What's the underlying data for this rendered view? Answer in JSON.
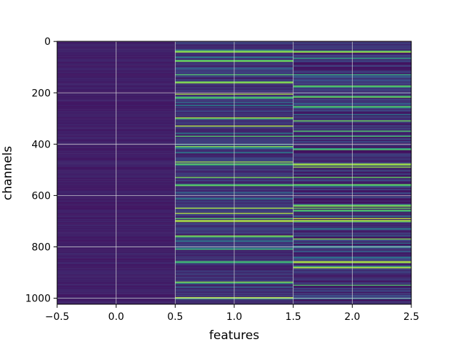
{
  "chart_data": {
    "type": "heatmap",
    "title": "",
    "xlabel": "features",
    "ylabel": "channels",
    "columns": 3,
    "rows": 1024,
    "xlim": [
      -0.5,
      2.5
    ],
    "ylim": [
      1023.5,
      -0.5
    ],
    "xticks": [
      -0.5,
      0.0,
      0.5,
      1.0,
      1.5,
      2.0,
      2.5
    ],
    "xtick_labels": [
      "−0.5",
      "0.0",
      "0.5",
      "1.0",
      "1.5",
      "2.0",
      "2.5"
    ],
    "yticks": [
      0,
      200,
      400,
      600,
      800,
      1000
    ],
    "ytick_labels": [
      "0",
      "200",
      "400",
      "600",
      "800",
      "1000"
    ],
    "grid": true,
    "colormap": "viridis",
    "column_bright_rows": [
      [],
      [
        40,
        75,
        130,
        160,
        205,
        220,
        300,
        330,
        370,
        410,
        470,
        480,
        530,
        560,
        650,
        670,
        690,
        700,
        760,
        810,
        860,
        940,
        1000
      ],
      [
        40,
        65,
        130,
        175,
        215,
        255,
        310,
        350,
        370,
        420,
        480,
        490,
        530,
        560,
        640,
        650,
        660,
        690,
        700,
        770,
        860,
        880,
        950
      ]
    ]
  }
}
